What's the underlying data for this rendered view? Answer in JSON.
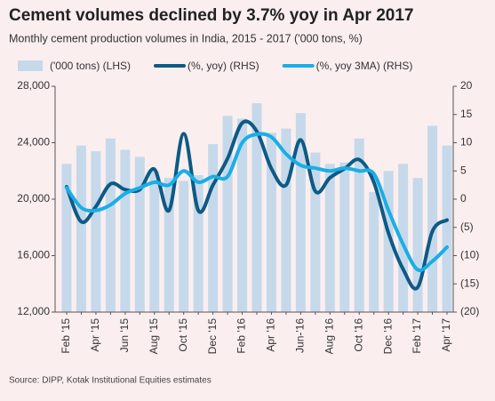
{
  "chart_data": {
    "type": "bar",
    "title": "Cement volumes declined by 3.7% yoy in Apr 2017",
    "subtitle": "Monthly cement production volumes in India, 2015 - 2017 ('000 tons, %)",
    "source": "Source: DIPP, Kotak Institutional Equities estimates",
    "categories": [
      "Feb '15",
      null,
      "Apr '15",
      null,
      "Jun '15",
      null,
      "Aug '15",
      null,
      "Oct '15",
      null,
      "Dec '15",
      null,
      "Feb '16",
      null,
      "Apr '16",
      null,
      "Jun-'16",
      null,
      "Aug '16",
      null,
      "Oct '16",
      null,
      "Dec '16",
      null,
      "Feb '17",
      null,
      "Apr '17"
    ],
    "series": [
      {
        "name": "('000 tons) (LHS)",
        "type": "bar",
        "color": "#c5d9ea",
        "values": [
          22500,
          23800,
          23400,
          24300,
          23500,
          23000,
          22000,
          21500,
          21300,
          21700,
          23900,
          25900,
          25700,
          26800,
          24700,
          25000,
          26100,
          23300,
          22500,
          22600,
          24300,
          20500,
          22000,
          22500,
          21500,
          25200,
          23800
        ]
      },
      {
        "name": "(%, yoy) (RHS)",
        "type": "line",
        "axis": "y2",
        "color": "#0d5a86",
        "values": [
          2.2,
          -4,
          -1.3,
          2.7,
          1.7,
          1.7,
          5.3,
          -2,
          11.6,
          -2,
          2.5,
          7.2,
          13.5,
          12,
          5.4,
          2.5,
          10.5,
          1.4,
          3.8,
          5.4,
          7,
          3,
          -6,
          -12.4,
          -15.6,
          -5.7,
          -3.7
        ]
      },
      {
        "name": "(%, yoy 3MA) (RHS)",
        "type": "line",
        "axis": "y2",
        "color": "#1aaee6",
        "values": [
          2,
          -1.5,
          -2,
          -1,
          1,
          2,
          3,
          2.5,
          5,
          3,
          4,
          4,
          10,
          11.5,
          11,
          8,
          6,
          5.5,
          5,
          5.5,
          5,
          4.5,
          -2,
          -8,
          -12.5,
          -11,
          -8.5
        ]
      }
    ],
    "ylim": [
      12000,
      28000
    ],
    "yticks": [
      {
        "value": 12000,
        "label": "12,000"
      },
      {
        "value": 16000,
        "label": "16,000"
      },
      {
        "value": 20000,
        "label": "20,000"
      },
      {
        "value": 24000,
        "label": "24,000"
      },
      {
        "value": 28000,
        "label": "28,000"
      }
    ],
    "y2lim": [
      -20,
      20
    ],
    "y2ticks": [
      {
        "value": -20,
        "label": "(20)"
      },
      {
        "value": -15,
        "label": "(15)"
      },
      {
        "value": -10,
        "label": "(10)"
      },
      {
        "value": -5,
        "label": "(5)"
      },
      0,
      5,
      10,
      15,
      20
    ],
    "grid": false
  }
}
